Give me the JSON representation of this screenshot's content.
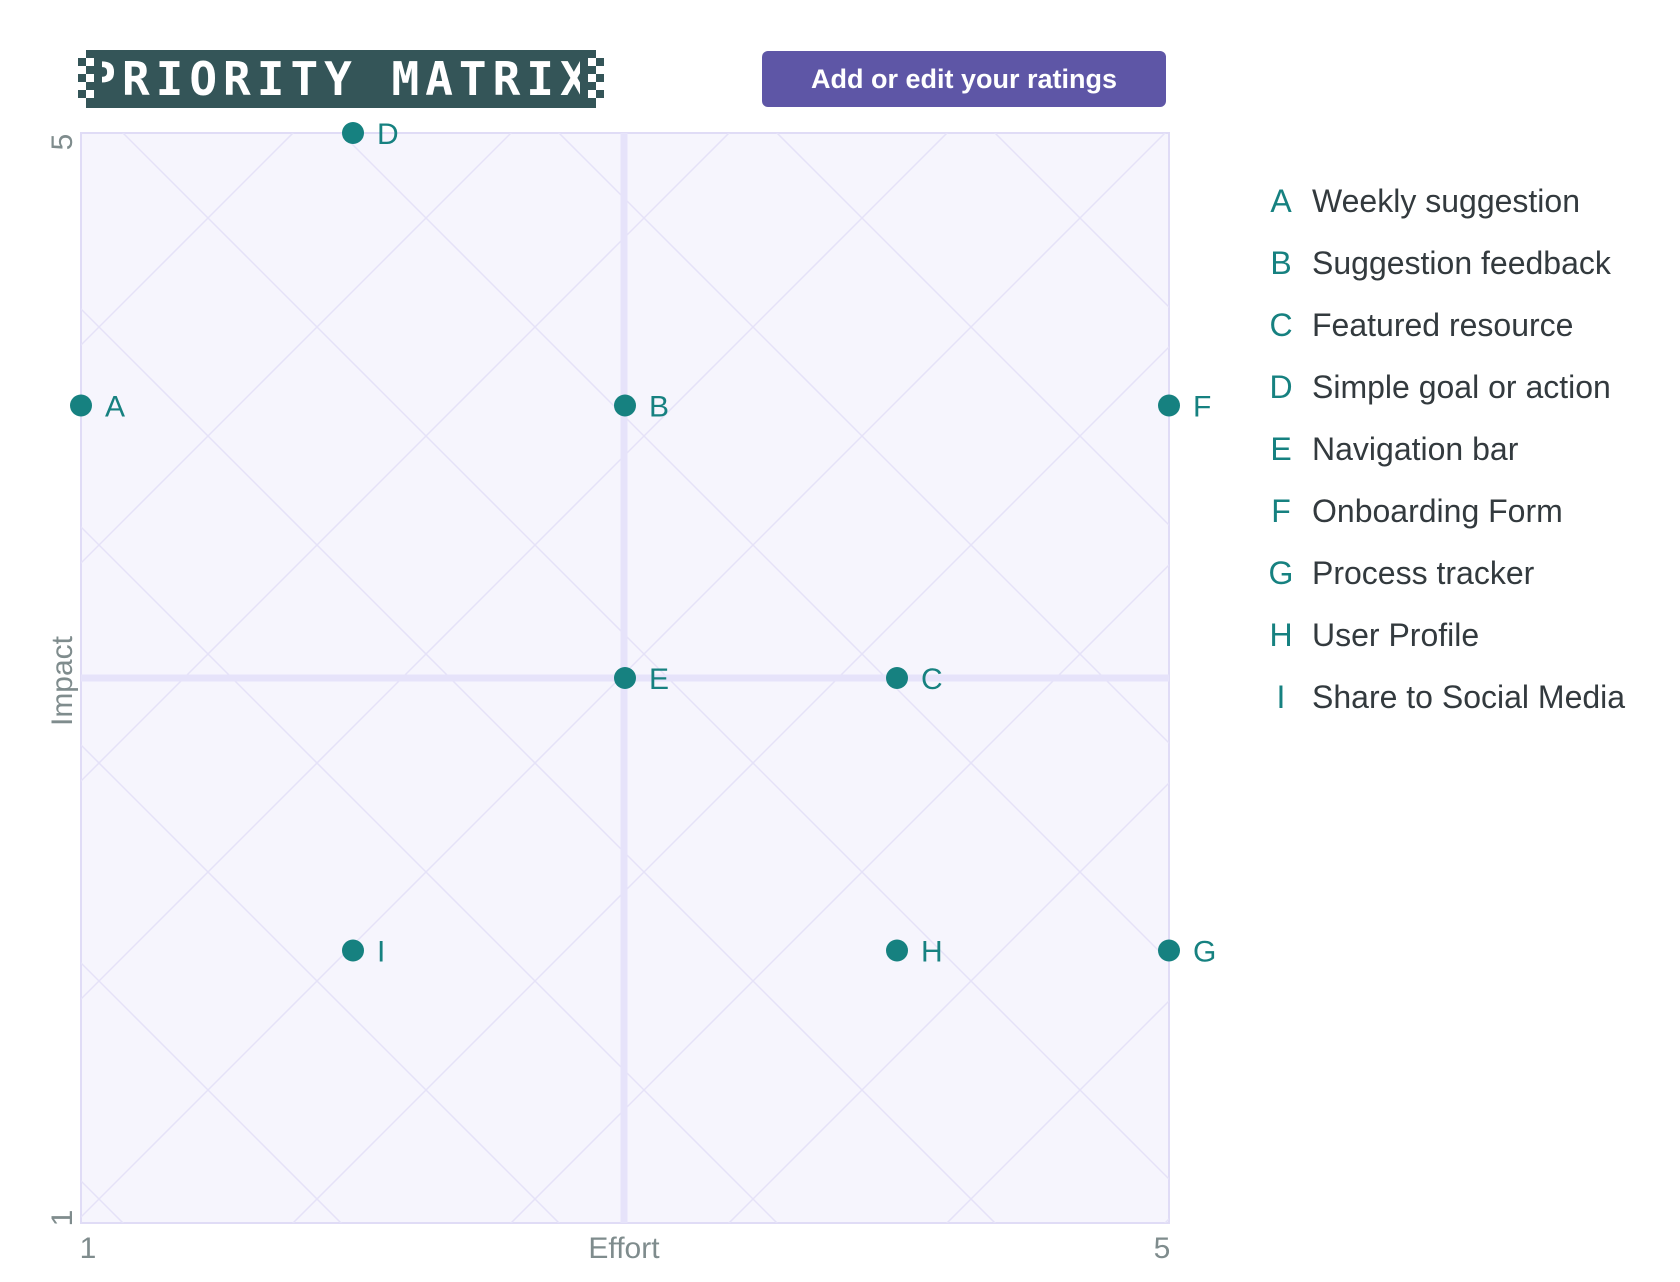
{
  "header": {
    "title": "PRIORITY MATRIX",
    "button_label": "Add or edit your ratings"
  },
  "colors": {
    "point": "#168180",
    "plot_bg": "#f6f5fd",
    "grid": "#e5e2f8",
    "button": "#5e56a6",
    "title_bg": "#345558",
    "axis_text": "#7f8c8d"
  },
  "chart_data": {
    "type": "scatter",
    "xlabel": "Effort",
    "ylabel": "Impact",
    "xlim": [
      1,
      5
    ],
    "ylim": [
      1,
      5
    ],
    "x_ticks": [
      "1",
      "5"
    ],
    "y_ticks": [
      "1",
      "5"
    ],
    "grid": true,
    "legend_position": "right",
    "points": [
      {
        "key": "A",
        "label": "Weekly suggestion",
        "x": 1,
        "y": 4
      },
      {
        "key": "B",
        "label": "Suggestion feedback",
        "x": 3,
        "y": 4
      },
      {
        "key": "C",
        "label": "Featured resource",
        "x": 4,
        "y": 3
      },
      {
        "key": "D",
        "label": "Simple goal or action",
        "x": 2,
        "y": 5
      },
      {
        "key": "E",
        "label": "Navigation bar",
        "x": 3,
        "y": 3
      },
      {
        "key": "F",
        "label": "Onboarding Form",
        "x": 5,
        "y": 4
      },
      {
        "key": "G",
        "label": "Process tracker",
        "x": 5,
        "y": 2
      },
      {
        "key": "H",
        "label": "User Profile",
        "x": 4,
        "y": 2
      },
      {
        "key": "I",
        "label": "Share to Social Media",
        "x": 2,
        "y": 2
      }
    ]
  }
}
